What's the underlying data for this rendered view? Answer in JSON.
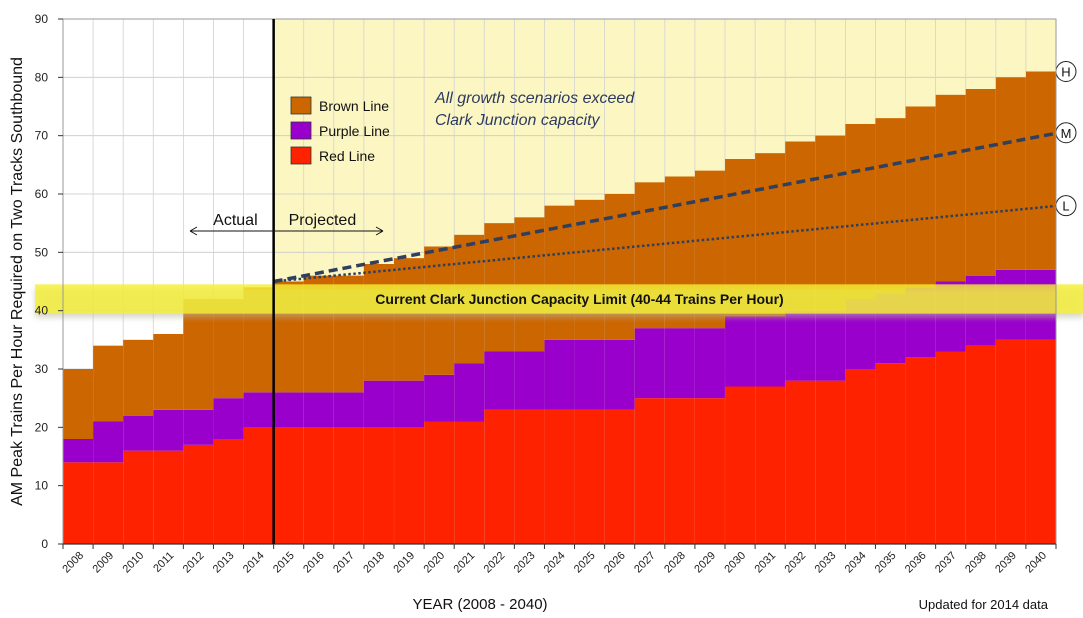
{
  "chart_data": {
    "type": "bar",
    "stacked": true,
    "ylabel": "AM Peak Trains Per Hour Required on Two Tracks Southbound",
    "xlabel": "YEAR (2008 - 2040)",
    "footnote": "Updated for 2014 data",
    "ylim": [
      0,
      90
    ],
    "yticks": [
      0,
      10,
      20,
      30,
      40,
      50,
      60,
      70,
      80,
      90
    ],
    "categories": [
      "2008",
      "2009",
      "2010",
      "2011",
      "2012",
      "2013",
      "2014",
      "2015",
      "2016",
      "2017",
      "2018",
      "2019",
      "2020",
      "2021",
      "2022",
      "2023",
      "2024",
      "2025",
      "2026",
      "2027",
      "2028",
      "2029",
      "2030",
      "2031",
      "2032",
      "2033",
      "2034",
      "2035",
      "2036",
      "2037",
      "2038",
      "2039",
      "2040"
    ],
    "series": [
      {
        "name": "Red Line",
        "color": "#ff2200",
        "values": [
          14,
          14,
          16,
          16,
          17,
          18,
          20,
          20,
          20,
          20,
          20,
          20,
          21,
          21,
          23,
          23,
          23,
          23,
          23,
          25,
          25,
          25,
          27,
          27,
          28,
          28,
          30,
          31,
          32,
          33,
          34,
          35,
          35
        ]
      },
      {
        "name": "Purple Line",
        "color": "#9900cc",
        "values": [
          4,
          7,
          6,
          7,
          6,
          7,
          6,
          6,
          6,
          6,
          8,
          8,
          8,
          10,
          10,
          10,
          12,
          12,
          12,
          12,
          12,
          12,
          12,
          12,
          12,
          12,
          12,
          12,
          12,
          12,
          12,
          12,
          12
        ]
      },
      {
        "name": "Brown Line",
        "color": "#cc6600",
        "values": [
          12,
          13,
          13,
          13,
          19,
          17,
          18,
          19,
          20,
          20,
          20,
          21,
          22,
          22,
          22,
          23,
          23,
          24,
          25,
          25,
          26,
          27,
          27,
          28,
          29,
          30,
          30,
          30,
          31,
          32,
          32,
          33,
          34
        ]
      }
    ],
    "legend": [
      "Brown Line",
      "Purple Line",
      "Red Line"
    ],
    "actual_label": "Actual",
    "projected_label": "Projected",
    "actual_end_year": "2014",
    "capacity_band": {
      "low": 40,
      "high": 44,
      "label": "Current Clark Junction Capacity Limit (40-44 Trains Per Hour)"
    },
    "annotation": [
      "All growth scenarios exceed",
      "Clark Junction capacity"
    ],
    "scenarios": [
      {
        "name": "H",
        "start": {
          "year": "2015",
          "value": 45
        },
        "end": {
          "year": "2040",
          "value": 81
        },
        "style": "none"
      },
      {
        "name": "M",
        "start": {
          "year": "2015",
          "value": 45
        },
        "end": {
          "year": "2040",
          "value": 70.5
        },
        "style": "dashed"
      },
      {
        "name": "L",
        "start": {
          "year": "2015",
          "value": 45
        },
        "end": {
          "year": "2040",
          "value": 58
        },
        "style": "dotted"
      }
    ],
    "colors": {
      "projected_bg": "#fcf7c2",
      "band": "#f5f032",
      "scenario_line": "#2f3f5e",
      "annotation_text": "#2d3a60"
    }
  }
}
